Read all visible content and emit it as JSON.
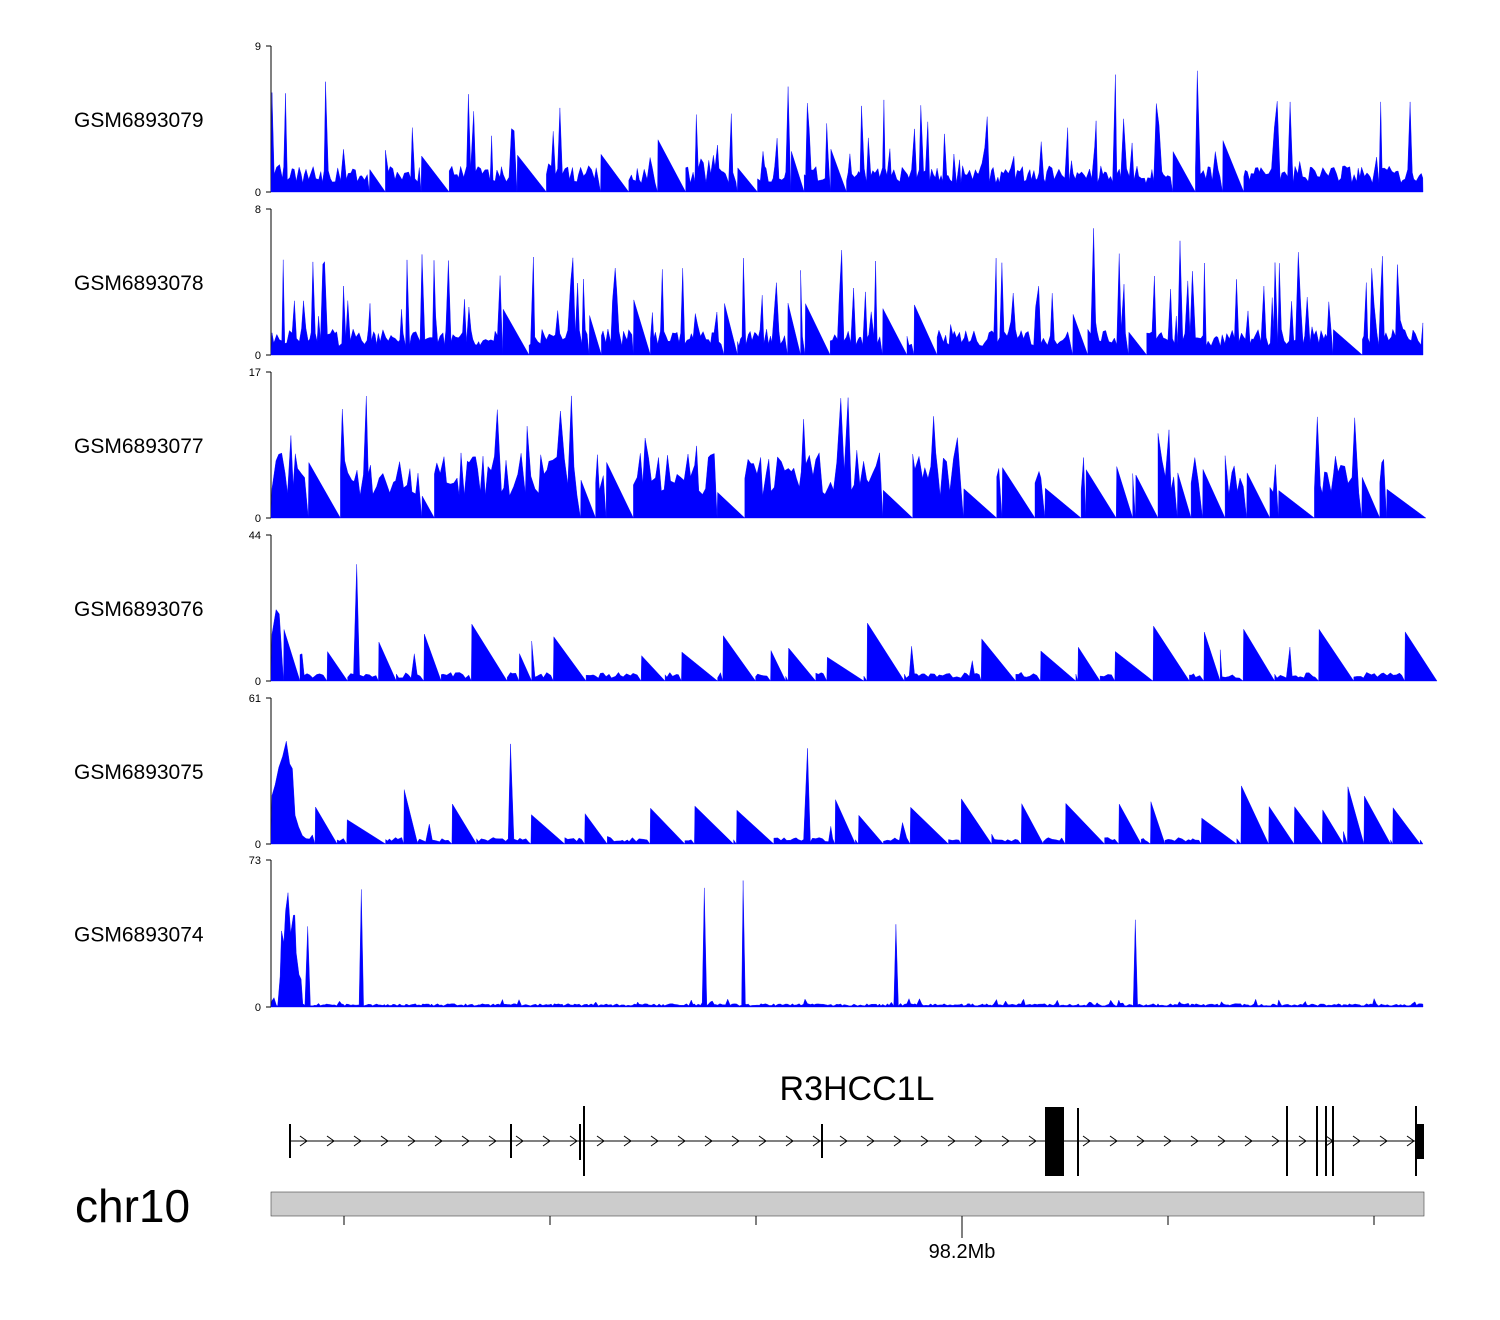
{
  "chart_data": {
    "type": "area",
    "chromosome": "chr10",
    "gene": "R3HCC1L",
    "axis_tick_label": "98.2Mb",
    "track_color": "#0000ff",
    "tracks": [
      {
        "name": "GSM6893079",
        "ylim": [
          0,
          9
        ],
        "tick_top": "9",
        "tick_bottom": "0"
      },
      {
        "name": "GSM6893078",
        "ylim": [
          0,
          8
        ],
        "tick_top": "8",
        "tick_bottom": "0"
      },
      {
        "name": "GSM6893077",
        "ylim": [
          0,
          17
        ],
        "tick_top": "17",
        "tick_bottom": "0"
      },
      {
        "name": "GSM6893076",
        "ylim": [
          0,
          44
        ],
        "tick_top": "44",
        "tick_bottom": "0"
      },
      {
        "name": "GSM6893075",
        "ylim": [
          0,
          61
        ],
        "tick_top": "61",
        "tick_bottom": "0"
      },
      {
        "name": "GSM6893074",
        "ylim": [
          0,
          73
        ],
        "tick_top": "73",
        "tick_bottom": "0"
      }
    ]
  }
}
